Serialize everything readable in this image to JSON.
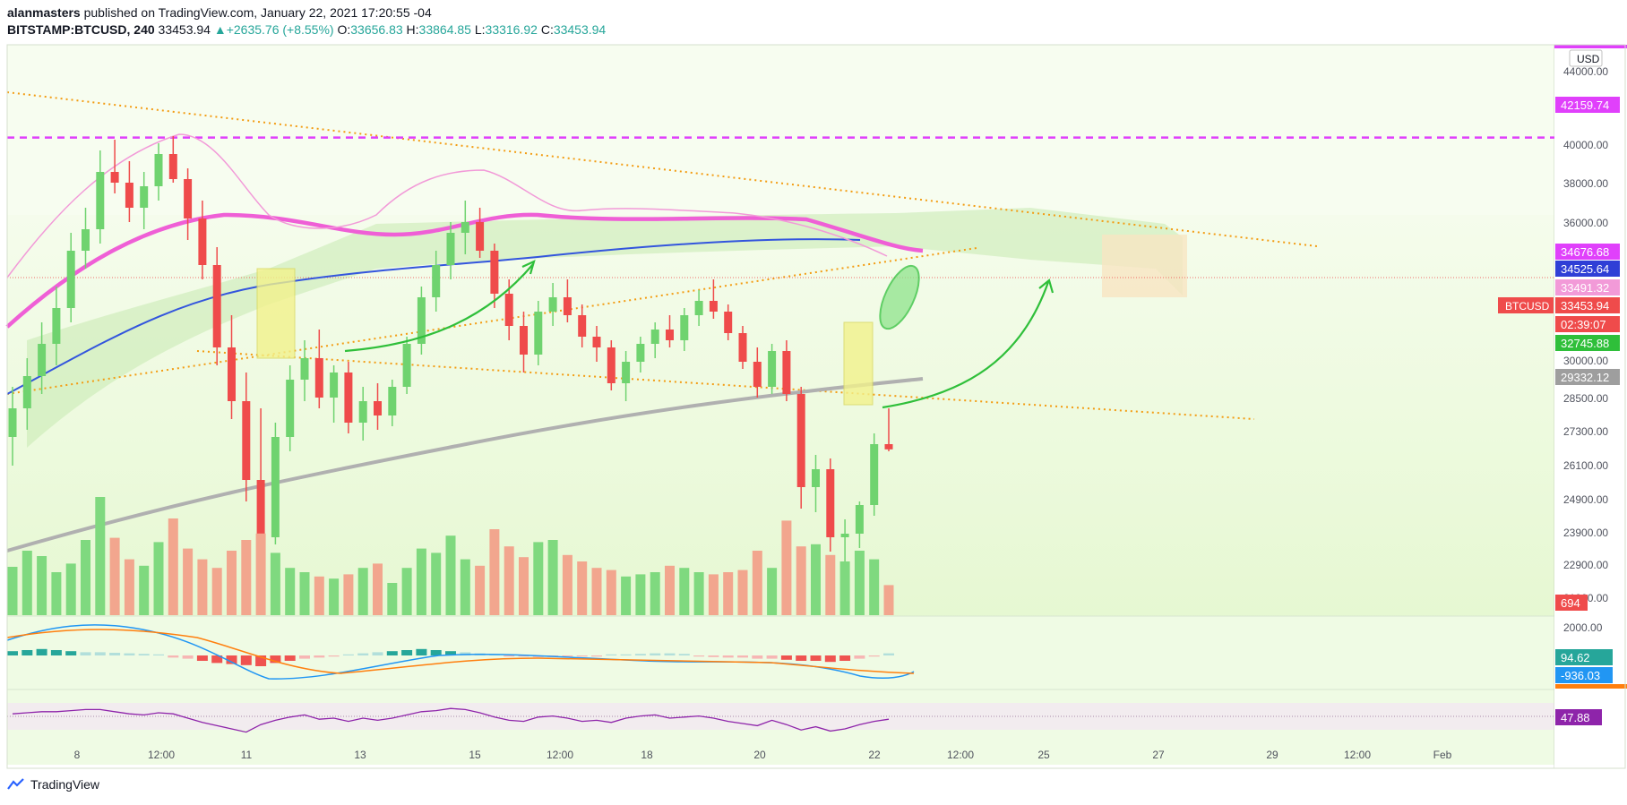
{
  "header": {
    "author": "alanmasters",
    "published_text": "published on TradingView.com, January 22, 2021 17:20:55 -04",
    "symbol": "BITSTAMP:BTCUSD, 240",
    "last": "33453.94",
    "change": "+2635.76 (+8.55%)",
    "o_label": "O:",
    "o_value": "33656.83",
    "h_label": "H:",
    "h_value": "33864.85",
    "l_label": "L:",
    "l_value": "33316.92",
    "c_label": "C:",
    "c_value": "33453.94"
  },
  "footer": {
    "brand": "TradingView"
  },
  "colors": {
    "up": "#6fd36f",
    "down": "#ef4b4b",
    "magenta": "#e040fb",
    "ma_blue": "#3355dd",
    "ma_gray": "#b0b0b0",
    "ma_pink": "#ef5fd6",
    "cloud": "#c7eab0",
    "bg_green": "#e6f8d2"
  },
  "chart_data": {
    "type": "candlestick",
    "currency_label": "USD",
    "x_ticks": [
      "8",
      "12:00",
      "11",
      "13",
      "15",
      "12:00",
      "18",
      "20",
      "22",
      "12:00",
      "25",
      "27",
      "29",
      "12:00",
      "Feb"
    ],
    "y_ticks": [
      "44000.00",
      "40000.00",
      "38000.00",
      "36000.00",
      "30000.00",
      "28500.00",
      "27300.00",
      "26100.00",
      "24900.00",
      "23900.00",
      "22900.00",
      "21900.00"
    ],
    "price_labels": [
      {
        "text": "42159.74",
        "color": "#e040fb"
      },
      {
        "text": "34676.68",
        "color": "#e040fb"
      },
      {
        "text": "34525.64",
        "color": "#2f3fd6"
      },
      {
        "text": "33491.32",
        "color": "#f29ad8"
      },
      {
        "text": "33453.94",
        "color": "#ef4b4b"
      },
      {
        "text": "02:39:07",
        "color": "#ef4b4b"
      },
      {
        "text": "32745.88",
        "color": "#2fbf3a"
      },
      {
        "text": "29332.12",
        "color": "#9e9e9e"
      }
    ],
    "last_symbol": "BTCUSD",
    "volume_label": "694",
    "macd_axis": "2000.00",
    "macd_labels": [
      {
        "text": "94.62",
        "color": "#26a69a"
      },
      {
        "text": "-936.03",
        "color": "#2196f3"
      }
    ],
    "rsi_label": "47.88",
    "resistance_level": 42159.74,
    "candles": [
      [
        33800,
        35200,
        33000,
        34600
      ],
      [
        34600,
        36000,
        34000,
        35500
      ],
      [
        35500,
        37000,
        35000,
        36400
      ],
      [
        36400,
        38000,
        35800,
        37400
      ],
      [
        37400,
        39500,
        37000,
        39000
      ],
      [
        39000,
        40200,
        38500,
        39600
      ],
      [
        39600,
        41800,
        39200,
        41200
      ],
      [
        41200,
        42100,
        40600,
        40900
      ],
      [
        40900,
        41500,
        39800,
        40200
      ],
      [
        40200,
        41200,
        39600,
        40800
      ],
      [
        40800,
        42000,
        40400,
        41700
      ],
      [
        41700,
        42200,
        40900,
        41000
      ],
      [
        41000,
        41300,
        39300,
        39900
      ],
      [
        39900,
        40400,
        38200,
        38600
      ],
      [
        38600,
        39100,
        35800,
        36300
      ],
      [
        36300,
        37200,
        34300,
        34800
      ],
      [
        34800,
        35600,
        32000,
        32600
      ],
      [
        32600,
        34600,
        30400,
        31000
      ],
      [
        31000,
        34200,
        30800,
        33800
      ],
      [
        33800,
        35800,
        33400,
        35400
      ],
      [
        35400,
        36500,
        34800,
        36000
      ],
      [
        36000,
        36800,
        34600,
        34900
      ],
      [
        34900,
        35800,
        34200,
        35600
      ],
      [
        35600,
        35900,
        33900,
        34200
      ],
      [
        34200,
        35200,
        33700,
        34800
      ],
      [
        34800,
        35300,
        34000,
        34400
      ],
      [
        34400,
        35400,
        34100,
        35200
      ],
      [
        35200,
        36600,
        35000,
        36400
      ],
      [
        36400,
        38000,
        36100,
        37700
      ],
      [
        37700,
        39000,
        37300,
        38600
      ],
      [
        38600,
        39800,
        38200,
        39500
      ],
      [
        39500,
        40400,
        38900,
        39800
      ],
      [
        39800,
        40200,
        38800,
        39000
      ],
      [
        39000,
        39200,
        37400,
        37800
      ],
      [
        37800,
        38200,
        36500,
        36900
      ],
      [
        36900,
        37300,
        35600,
        36100
      ],
      [
        36100,
        37600,
        35800,
        37300
      ],
      [
        37300,
        38100,
        36900,
        37700
      ],
      [
        37700,
        38200,
        37000,
        37200
      ],
      [
        37200,
        37500,
        36300,
        36600
      ],
      [
        36600,
        36900,
        35900,
        36300
      ],
      [
        36300,
        36500,
        35100,
        35300
      ],
      [
        35300,
        36200,
        34800,
        35900
      ],
      [
        35900,
        36600,
        35600,
        36400
      ],
      [
        36400,
        37000,
        36000,
        36800
      ],
      [
        36800,
        37200,
        36300,
        36500
      ],
      [
        36500,
        37400,
        36200,
        37200
      ],
      [
        37200,
        37900,
        36900,
        37600
      ],
      [
        37600,
        38200,
        37100,
        37300
      ],
      [
        37300,
        37500,
        36500,
        36700
      ],
      [
        36700,
        36900,
        35700,
        35900
      ],
      [
        35900,
        36300,
        34900,
        35200
      ],
      [
        35200,
        36400,
        35000,
        36200
      ],
      [
        36200,
        36500,
        34800,
        35000
      ],
      [
        35000,
        35200,
        31800,
        32400
      ],
      [
        32400,
        33300,
        31700,
        32900
      ],
      [
        32900,
        33200,
        30600,
        31000
      ],
      [
        31000,
        31500,
        28900,
        31100
      ],
      [
        31100,
        32000,
        30700,
        31900
      ],
      [
        31900,
        33900,
        31600,
        33600
      ],
      [
        33600,
        34600,
        33400,
        33454
      ]
    ],
    "volumes": [
      45,
      60,
      55,
      40,
      48,
      70,
      110,
      72,
      52,
      46,
      68,
      90,
      62,
      52,
      44,
      60,
      70,
      76,
      58,
      44,
      40,
      36,
      34,
      38,
      44,
      48,
      30,
      44,
      62,
      58,
      74,
      52,
      46,
      80,
      64,
      54,
      68,
      70,
      56,
      50,
      44,
      42,
      36,
      38,
      40,
      46,
      44,
      40,
      38,
      40,
      42,
      60,
      44,
      88,
      64,
      66,
      56,
      50,
      60,
      52,
      28
    ],
    "macd_hist": [
      8,
      10,
      12,
      10,
      8,
      6,
      6,
      5,
      4,
      3,
      2,
      -4,
      -6,
      -10,
      -14,
      -16,
      -18,
      -20,
      -14,
      -10,
      -6,
      -4,
      -2,
      2,
      4,
      6,
      8,
      10,
      12,
      10,
      8,
      6,
      4,
      2,
      -2,
      -2,
      -3,
      -3,
      -2,
      -2,
      -2,
      2,
      2,
      3,
      4,
      4,
      3,
      -2,
      -3,
      -4,
      -4,
      -6,
      -6,
      -8,
      -10,
      -10,
      -12,
      -10,
      -6,
      -2,
      4
    ],
    "rsi": [
      58,
      60,
      62,
      62,
      64,
      66,
      66,
      62,
      58,
      56,
      60,
      58,
      50,
      42,
      36,
      30,
      24,
      38,
      46,
      52,
      56,
      48,
      50,
      44,
      50,
      46,
      50,
      56,
      62,
      64,
      68,
      66,
      60,
      52,
      46,
      44,
      52,
      54,
      50,
      44,
      46,
      42,
      50,
      54,
      56,
      50,
      52,
      54,
      50,
      44,
      40,
      36,
      46,
      38,
      28,
      34,
      26,
      30,
      38,
      44,
      48
    ]
  }
}
